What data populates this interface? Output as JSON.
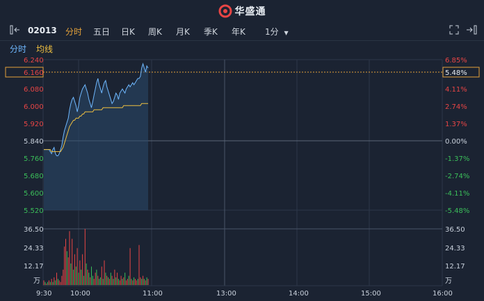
{
  "header": {
    "app_name": "华盛通"
  },
  "toolbar": {
    "stock_code": "02013",
    "tabs": [
      "分时",
      "五日",
      "日K",
      "周K",
      "月K",
      "季K",
      "年K"
    ],
    "active_tab": "分时",
    "interval": "1分"
  },
  "subbar": {
    "timeshare_label": "分时",
    "avg_label": "均线"
  },
  "price_axis": {
    "left": [
      "6.240",
      "6.160",
      "6.080",
      "6.000",
      "5.920",
      "5.840",
      "5.760",
      "5.680",
      "5.600",
      "5.520"
    ],
    "right": [
      "6.85%",
      "5.48%",
      "4.11%",
      "2.74%",
      "1.37%",
      "0.00%",
      "-1.37%",
      "-2.74%",
      "-4.11%",
      "-5.48%"
    ],
    "highlight_price": "6.160",
    "highlight_pct": "5.48%"
  },
  "volume_axis": {
    "left": [
      "36.50",
      "24.33",
      "12.17",
      "万"
    ],
    "right": [
      "36.50",
      "24.33",
      "12.17",
      "万"
    ]
  },
  "time_axis": [
    "9:30",
    "10:00",
    "11:00",
    "13:00",
    "14:00",
    "15:00",
    "16:00"
  ],
  "colors": {
    "up": "#e84545",
    "down": "#3bbf5a",
    "price_line": "#6fb8ff",
    "avg_line": "#f0c040",
    "accent": "#e5a23a"
  },
  "chart_data": {
    "type": "line",
    "prev_close": 5.84,
    "y_range": [
      5.52,
      6.24
    ],
    "price_series": [
      5.81,
      5.81,
      5.81,
      5.81,
      5.81,
      5.8,
      5.79,
      5.81,
      5.82,
      5.79,
      5.78,
      5.78,
      5.79,
      5.81,
      5.83,
      5.87,
      5.9,
      5.92,
      5.94,
      5.96,
      6.0,
      6.03,
      6.05,
      6.06,
      6.04,
      6.02,
      5.99,
      6.02,
      6.06,
      6.08,
      6.1,
      6.11,
      6.12,
      6.1,
      6.08,
      6.05,
      6.03,
      6.01,
      6.04,
      6.07,
      6.1,
      6.13,
      6.15,
      6.12,
      6.1,
      6.08,
      6.11,
      6.13,
      6.14,
      6.11,
      6.09,
      6.07,
      6.05,
      6.03,
      6.04,
      6.06,
      6.08,
      6.07,
      6.05,
      6.08,
      6.09,
      6.1,
      6.09,
      6.08,
      6.1,
      6.11,
      6.12,
      6.11,
      6.12,
      6.13,
      6.12,
      6.13,
      6.14,
      6.15,
      6.15,
      6.16,
      6.2,
      6.22,
      6.2,
      6.18,
      6.21,
      6.2
    ],
    "avg_series": [
      5.81,
      5.81,
      5.81,
      5.81,
      5.81,
      5.81,
      5.8,
      5.8,
      5.8,
      5.8,
      5.8,
      5.8,
      5.8,
      5.8,
      5.81,
      5.82,
      5.84,
      5.86,
      5.88,
      5.9,
      5.92,
      5.93,
      5.94,
      5.95,
      5.95,
      5.96,
      5.96,
      5.96,
      5.97,
      5.97,
      5.98,
      5.98,
      5.99,
      5.99,
      5.99,
      5.99,
      5.99,
      5.99,
      5.99,
      6.0,
      6.0,
      6.0,
      6.0,
      6.0,
      6.0,
      6.0,
      6.01,
      6.01,
      6.01,
      6.01,
      6.01,
      6.01,
      6.01,
      6.01,
      6.01,
      6.01,
      6.01,
      6.01,
      6.01,
      6.01,
      6.01,
      6.01,
      6.02,
      6.02,
      6.02,
      6.02,
      6.02,
      6.02,
      6.02,
      6.02,
      6.02,
      6.02,
      6.02,
      6.02,
      6.02,
      6.02,
      6.03,
      6.03,
      6.03,
      6.03,
      6.03,
      6.03
    ],
    "volume_max": 36.5,
    "volumes": [
      3,
      2,
      1,
      2,
      3,
      2,
      4,
      2,
      5,
      3,
      8,
      4,
      3,
      2,
      6,
      10,
      25,
      30,
      22,
      18,
      35,
      14,
      30,
      10,
      20,
      12,
      24,
      8,
      16,
      10,
      20,
      6,
      36.5,
      14,
      10,
      8,
      5,
      12,
      6,
      4,
      8,
      10,
      6,
      4,
      5,
      12,
      4,
      16,
      8,
      6,
      5,
      4,
      8,
      6,
      4,
      10,
      5,
      8,
      4,
      3,
      6,
      4,
      5,
      8,
      3,
      4,
      6,
      24,
      4,
      3,
      5,
      4,
      3,
      4,
      26,
      5,
      4,
      6,
      4,
      3,
      5,
      4
    ],
    "volume_colors": [
      "up",
      "down",
      "up",
      "down",
      "up",
      "down",
      "up",
      "down",
      "up",
      "down",
      "up",
      "down",
      "up",
      "up",
      "up",
      "up",
      "up",
      "up",
      "down",
      "up",
      "up",
      "down",
      "up",
      "down",
      "up",
      "down",
      "up",
      "down",
      "up",
      "down",
      "up",
      "down",
      "up",
      "down",
      "up",
      "down",
      "up",
      "down",
      "down",
      "up",
      "up",
      "down",
      "up",
      "down",
      "down",
      "up",
      "down",
      "up",
      "down",
      "up",
      "down",
      "up",
      "down",
      "up",
      "down",
      "up",
      "down",
      "up",
      "down",
      "up",
      "up",
      "down",
      "up",
      "down",
      "up",
      "up",
      "down",
      "up",
      "down",
      "up",
      "down",
      "up",
      "up",
      "down",
      "up",
      "up",
      "down",
      "up",
      "down",
      "up",
      "down",
      "up"
    ]
  }
}
